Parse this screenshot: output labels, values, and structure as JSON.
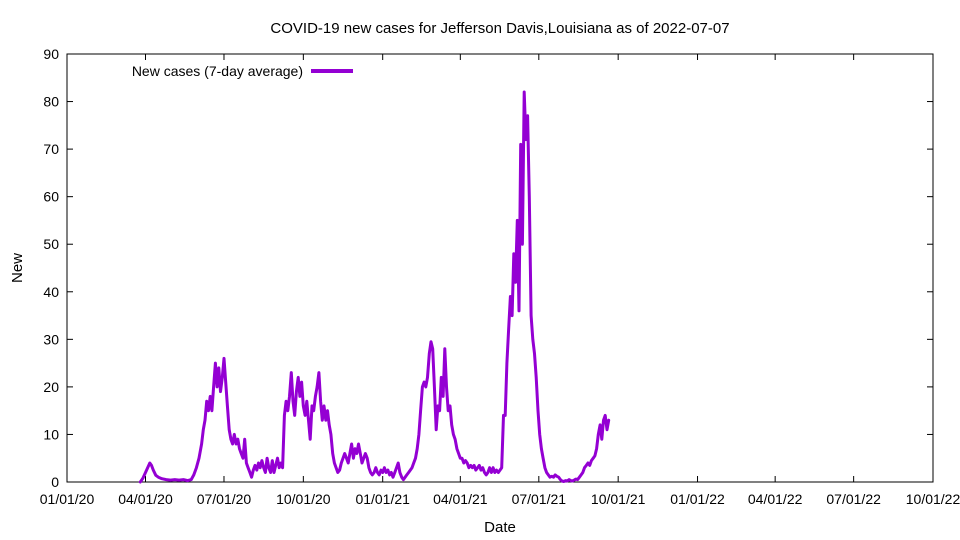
{
  "chart_data": {
    "type": "line",
    "title": "COVID-19 new cases for Jefferson Davis,Louisiana as of 2022-07-07",
    "xlabel": "Date",
    "ylabel": "New",
    "xlim_days": [
      0,
      1004
    ],
    "ylim": [
      0,
      90
    ],
    "y_ticks": [
      0,
      10,
      20,
      30,
      40,
      50,
      60,
      70,
      80,
      90
    ],
    "x_ticks": [
      {
        "day": 0,
        "label": "01/01/20"
      },
      {
        "day": 91,
        "label": "04/01/20"
      },
      {
        "day": 182,
        "label": "07/01/20"
      },
      {
        "day": 274,
        "label": "10/01/20"
      },
      {
        "day": 366,
        "label": "01/01/21"
      },
      {
        "day": 456,
        "label": "04/01/21"
      },
      {
        "day": 547,
        "label": "07/01/21"
      },
      {
        "day": 639,
        "label": "10/01/21"
      },
      {
        "day": 731,
        "label": "01/01/22"
      },
      {
        "day": 821,
        "label": "04/01/22"
      },
      {
        "day": 912,
        "label": "07/01/22"
      },
      {
        "day": 1004,
        "label": "10/01/22"
      }
    ],
    "grid": false,
    "legend_position": "top-left",
    "colors": {
      "series": "#9400d3",
      "axis": "#000000"
    },
    "series": [
      {
        "name": "New cases (7-day average)",
        "x_unit": "days since 2020-01-01",
        "points": [
          [
            85,
            0
          ],
          [
            88,
            0.8
          ],
          [
            91,
            2
          ],
          [
            94,
            3.2
          ],
          [
            96,
            4
          ],
          [
            98,
            3.5
          ],
          [
            100,
            2.5
          ],
          [
            103,
            1.4
          ],
          [
            106,
            1
          ],
          [
            110,
            0.7
          ],
          [
            115,
            0.5
          ],
          [
            120,
            0.4
          ],
          [
            125,
            0.5
          ],
          [
            130,
            0.4
          ],
          [
            135,
            0.5
          ],
          [
            140,
            0.3
          ],
          [
            144,
            0.5
          ],
          [
            147,
            1.5
          ],
          [
            150,
            3
          ],
          [
            153,
            5
          ],
          [
            156,
            8
          ],
          [
            158,
            11
          ],
          [
            160,
            13
          ],
          [
            162,
            17
          ],
          [
            164,
            15
          ],
          [
            166,
            18
          ],
          [
            168,
            15
          ],
          [
            170,
            20
          ],
          [
            172,
            25
          ],
          [
            174,
            20
          ],
          [
            176,
            24
          ],
          [
            178,
            19
          ],
          [
            180,
            22
          ],
          [
            182,
            26
          ],
          [
            184,
            21
          ],
          [
            186,
            16
          ],
          [
            188,
            11
          ],
          [
            190,
            9
          ],
          [
            192,
            8
          ],
          [
            194,
            10
          ],
          [
            196,
            8
          ],
          [
            198,
            9
          ],
          [
            200,
            7
          ],
          [
            202,
            6
          ],
          [
            204,
            5
          ],
          [
            206,
            9
          ],
          [
            208,
            4
          ],
          [
            210,
            3
          ],
          [
            212,
            2
          ],
          [
            214,
            1
          ],
          [
            216,
            2.5
          ],
          [
            218,
            3.5
          ],
          [
            220,
            2.5
          ],
          [
            222,
            4
          ],
          [
            224,
            3
          ],
          [
            226,
            4.5
          ],
          [
            228,
            3
          ],
          [
            230,
            2
          ],
          [
            232,
            5
          ],
          [
            234,
            3
          ],
          [
            236,
            2
          ],
          [
            238,
            4.5
          ],
          [
            240,
            2
          ],
          [
            242,
            3.5
          ],
          [
            244,
            5
          ],
          [
            246,
            3
          ],
          [
            248,
            4
          ],
          [
            250,
            3
          ],
          [
            252,
            14
          ],
          [
            254,
            17
          ],
          [
            256,
            15
          ],
          [
            258,
            18
          ],
          [
            260,
            23
          ],
          [
            262,
            17
          ],
          [
            264,
            14
          ],
          [
            266,
            19
          ],
          [
            268,
            22
          ],
          [
            270,
            18
          ],
          [
            272,
            21
          ],
          [
            274,
            16
          ],
          [
            276,
            14
          ],
          [
            278,
            17
          ],
          [
            280,
            13
          ],
          [
            282,
            9
          ],
          [
            284,
            16
          ],
          [
            286,
            15
          ],
          [
            288,
            18
          ],
          [
            290,
            20
          ],
          [
            292,
            23
          ],
          [
            294,
            17
          ],
          [
            296,
            13
          ],
          [
            298,
            16
          ],
          [
            300,
            13
          ],
          [
            302,
            15
          ],
          [
            304,
            12
          ],
          [
            306,
            10
          ],
          [
            308,
            6
          ],
          [
            310,
            4
          ],
          [
            312,
            3
          ],
          [
            314,
            2
          ],
          [
            316,
            2.5
          ],
          [
            318,
            4
          ],
          [
            320,
            5
          ],
          [
            322,
            6
          ],
          [
            324,
            5
          ],
          [
            326,
            4
          ],
          [
            328,
            6
          ],
          [
            330,
            8
          ],
          [
            332,
            5
          ],
          [
            334,
            7
          ],
          [
            336,
            6
          ],
          [
            338,
            8
          ],
          [
            340,
            6
          ],
          [
            342,
            4
          ],
          [
            344,
            5
          ],
          [
            346,
            6
          ],
          [
            348,
            5
          ],
          [
            350,
            3
          ],
          [
            352,
            2
          ],
          [
            354,
            1.5
          ],
          [
            356,
            2
          ],
          [
            358,
            3
          ],
          [
            360,
            2
          ],
          [
            362,
            1.5
          ],
          [
            364,
            2.5
          ],
          [
            366,
            2
          ],
          [
            368,
            3
          ],
          [
            370,
            2
          ],
          [
            372,
            2.5
          ],
          [
            374,
            1.5
          ],
          [
            376,
            2
          ],
          [
            378,
            1
          ],
          [
            380,
            2
          ],
          [
            382,
            3
          ],
          [
            384,
            4
          ],
          [
            386,
            2
          ],
          [
            388,
            1
          ],
          [
            390,
            0.5
          ],
          [
            392,
            1
          ],
          [
            394,
            1.5
          ],
          [
            396,
            2
          ],
          [
            398,
            2.5
          ],
          [
            400,
            3
          ],
          [
            402,
            4
          ],
          [
            404,
            5
          ],
          [
            406,
            7
          ],
          [
            408,
            10
          ],
          [
            410,
            15
          ],
          [
            412,
            20
          ],
          [
            414,
            21
          ],
          [
            416,
            20
          ],
          [
            418,
            22
          ],
          [
            420,
            27
          ],
          [
            422,
            29.5
          ],
          [
            424,
            28
          ],
          [
            426,
            20
          ],
          [
            428,
            11
          ],
          [
            430,
            16
          ],
          [
            432,
            15
          ],
          [
            434,
            22
          ],
          [
            436,
            18
          ],
          [
            438,
            28
          ],
          [
            440,
            20
          ],
          [
            442,
            15
          ],
          [
            444,
            16
          ],
          [
            446,
            12
          ],
          [
            448,
            10
          ],
          [
            450,
            9
          ],
          [
            452,
            7
          ],
          [
            454,
            6
          ],
          [
            456,
            5
          ],
          [
            458,
            5
          ],
          [
            460,
            4
          ],
          [
            462,
            4.5
          ],
          [
            464,
            4
          ],
          [
            466,
            3
          ],
          [
            468,
            3.5
          ],
          [
            470,
            3
          ],
          [
            472,
            3.5
          ],
          [
            474,
            2.5
          ],
          [
            476,
            3
          ],
          [
            478,
            3.5
          ],
          [
            480,
            2.5
          ],
          [
            482,
            3
          ],
          [
            484,
            2
          ],
          [
            486,
            1.5
          ],
          [
            488,
            2
          ],
          [
            490,
            3
          ],
          [
            492,
            2
          ],
          [
            494,
            3
          ],
          [
            496,
            2
          ],
          [
            498,
            2.5
          ],
          [
            500,
            2
          ],
          [
            502,
            2.5
          ],
          [
            504,
            3
          ],
          [
            506,
            14
          ],
          [
            508,
            14
          ],
          [
            510,
            25
          ],
          [
            512,
            32
          ],
          [
            514,
            39
          ],
          [
            516,
            35
          ],
          [
            518,
            48
          ],
          [
            520,
            42
          ],
          [
            522,
            55
          ],
          [
            524,
            36
          ],
          [
            526,
            71
          ],
          [
            528,
            50
          ],
          [
            530,
            82
          ],
          [
            532,
            72
          ],
          [
            534,
            77
          ],
          [
            536,
            60
          ],
          [
            538,
            35
          ],
          [
            540,
            30
          ],
          [
            542,
            27
          ],
          [
            544,
            22
          ],
          [
            546,
            15
          ],
          [
            548,
            10
          ],
          [
            550,
            7
          ],
          [
            552,
            5
          ],
          [
            554,
            3
          ],
          [
            556,
            2
          ],
          [
            558,
            1.5
          ],
          [
            560,
            1
          ],
          [
            562,
            1.2
          ],
          [
            564,
            1
          ],
          [
            566,
            1.5
          ],
          [
            568,
            1.2
          ],
          [
            570,
            1
          ],
          [
            572,
            0.5
          ],
          [
            574,
            0.2
          ],
          [
            576,
            0.1
          ],
          [
            578,
            0.3
          ],
          [
            580,
            0.2
          ],
          [
            582,
            0.5
          ],
          [
            584,
            0.3
          ],
          [
            586,
            0.2
          ],
          [
            588,
            0.4
          ],
          [
            590,
            0.6
          ],
          [
            592,
            0.5
          ],
          [
            594,
            1
          ],
          [
            596,
            1.5
          ],
          [
            598,
            2
          ],
          [
            600,
            3
          ],
          [
            602,
            3.5
          ],
          [
            604,
            4
          ],
          [
            606,
            3.5
          ],
          [
            608,
            4.5
          ],
          [
            610,
            5
          ],
          [
            612,
            5.5
          ],
          [
            614,
            7
          ],
          [
            616,
            10
          ],
          [
            618,
            12
          ],
          [
            620,
            9
          ],
          [
            622,
            13
          ],
          [
            624,
            14
          ],
          [
            626,
            11
          ],
          [
            628,
            13
          ]
        ]
      }
    ],
    "x_scale_note": "point x values are plot-relative days; mapped linearly onto the axis range"
  }
}
